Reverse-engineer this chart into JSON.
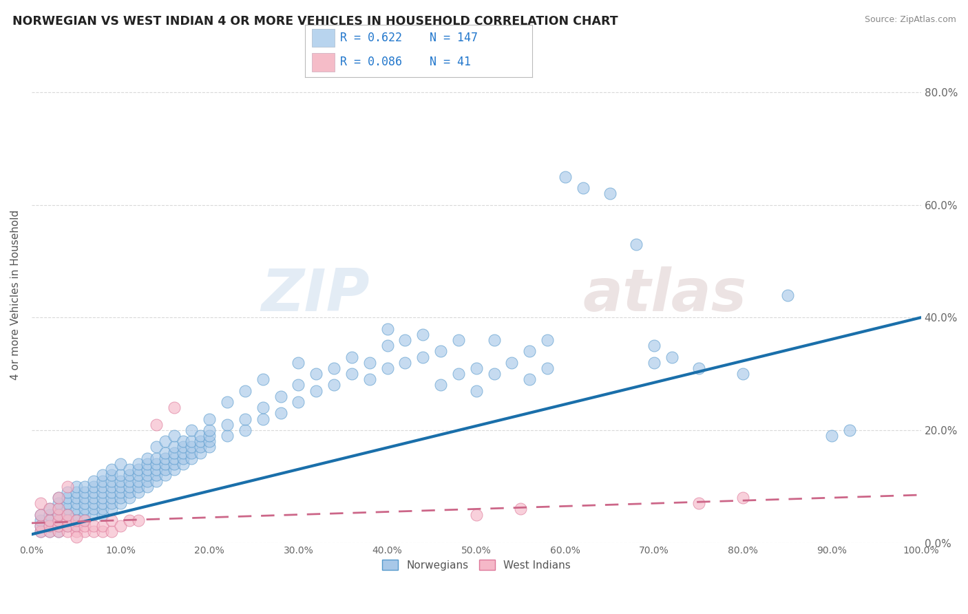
{
  "title": "NORWEGIAN VS WEST INDIAN 4 OR MORE VEHICLES IN HOUSEHOLD CORRELATION CHART",
  "source": "Source: ZipAtlas.com",
  "ylabel": "4 or more Vehicles in Household",
  "watermark_zip": "ZIP",
  "watermark_atlas": "atlas",
  "background_color": "#ffffff",
  "grid_color": "#d0d0d0",
  "norwegian_scatter_color": "#a8c8e8",
  "norwegian_edge_color": "#5599cc",
  "west_indian_scatter_color": "#f5b8c8",
  "west_indian_edge_color": "#dd7799",
  "norwegian_line_color": "#1a6faa",
  "west_indian_line_color": "#cc6688",
  "legend_nor_fill": "#b8d4ee",
  "legend_wi_fill": "#f5bcc8",
  "xlim": [
    0,
    100
  ],
  "ylim": [
    0,
    88
  ],
  "xaxis_pct_ticks": [
    0,
    10,
    20,
    30,
    40,
    50,
    60,
    70,
    80,
    90,
    100
  ],
  "yaxis_pct_ticks": [
    0,
    20,
    40,
    60,
    80
  ],
  "norwegian_R": 0.622,
  "norwegian_N": 147,
  "west_indian_R": 0.086,
  "west_indian_N": 41,
  "nor_line_x0": 0,
  "nor_line_y0": 1.5,
  "nor_line_x1": 100,
  "nor_line_y1": 40.0,
  "wi_line_x0": 0,
  "wi_line_y0": 3.5,
  "wi_line_x1": 100,
  "wi_line_y1": 8.5,
  "norwegian_points": [
    [
      1,
      2
    ],
    [
      1,
      3
    ],
    [
      1,
      4
    ],
    [
      1,
      5
    ],
    [
      2,
      2
    ],
    [
      2,
      3
    ],
    [
      2,
      4
    ],
    [
      2,
      5
    ],
    [
      2,
      6
    ],
    [
      3,
      2
    ],
    [
      3,
      3
    ],
    [
      3,
      4
    ],
    [
      3,
      5
    ],
    [
      3,
      6
    ],
    [
      3,
      7
    ],
    [
      3,
      8
    ],
    [
      4,
      3
    ],
    [
      4,
      4
    ],
    [
      4,
      5
    ],
    [
      4,
      6
    ],
    [
      4,
      7
    ],
    [
      4,
      8
    ],
    [
      4,
      9
    ],
    [
      5,
      3
    ],
    [
      5,
      4
    ],
    [
      5,
      5
    ],
    [
      5,
      6
    ],
    [
      5,
      7
    ],
    [
      5,
      8
    ],
    [
      5,
      9
    ],
    [
      5,
      10
    ],
    [
      6,
      4
    ],
    [
      6,
      5
    ],
    [
      6,
      6
    ],
    [
      6,
      7
    ],
    [
      6,
      8
    ],
    [
      6,
      9
    ],
    [
      6,
      10
    ],
    [
      7,
      5
    ],
    [
      7,
      6
    ],
    [
      7,
      7
    ],
    [
      7,
      8
    ],
    [
      7,
      9
    ],
    [
      7,
      10
    ],
    [
      7,
      11
    ],
    [
      8,
      5
    ],
    [
      8,
      6
    ],
    [
      8,
      7
    ],
    [
      8,
      8
    ],
    [
      8,
      9
    ],
    [
      8,
      10
    ],
    [
      8,
      11
    ],
    [
      8,
      12
    ],
    [
      9,
      6
    ],
    [
      9,
      7
    ],
    [
      9,
      8
    ],
    [
      9,
      9
    ],
    [
      9,
      10
    ],
    [
      9,
      11
    ],
    [
      9,
      12
    ],
    [
      9,
      13
    ],
    [
      10,
      7
    ],
    [
      10,
      8
    ],
    [
      10,
      9
    ],
    [
      10,
      10
    ],
    [
      10,
      11
    ],
    [
      10,
      12
    ],
    [
      10,
      14
    ],
    [
      11,
      8
    ],
    [
      11,
      9
    ],
    [
      11,
      10
    ],
    [
      11,
      11
    ],
    [
      11,
      12
    ],
    [
      11,
      13
    ],
    [
      12,
      9
    ],
    [
      12,
      10
    ],
    [
      12,
      11
    ],
    [
      12,
      12
    ],
    [
      12,
      13
    ],
    [
      12,
      14
    ],
    [
      13,
      10
    ],
    [
      13,
      11
    ],
    [
      13,
      12
    ],
    [
      13,
      13
    ],
    [
      13,
      14
    ],
    [
      13,
      15
    ],
    [
      14,
      11
    ],
    [
      14,
      12
    ],
    [
      14,
      13
    ],
    [
      14,
      14
    ],
    [
      14,
      15
    ],
    [
      14,
      17
    ],
    [
      15,
      12
    ],
    [
      15,
      13
    ],
    [
      15,
      14
    ],
    [
      15,
      15
    ],
    [
      15,
      16
    ],
    [
      15,
      18
    ],
    [
      16,
      13
    ],
    [
      16,
      14
    ],
    [
      16,
      15
    ],
    [
      16,
      16
    ],
    [
      16,
      17
    ],
    [
      16,
      19
    ],
    [
      17,
      14
    ],
    [
      17,
      15
    ],
    [
      17,
      16
    ],
    [
      17,
      17
    ],
    [
      17,
      18
    ],
    [
      18,
      15
    ],
    [
      18,
      16
    ],
    [
      18,
      17
    ],
    [
      18,
      18
    ],
    [
      18,
      20
    ],
    [
      19,
      16
    ],
    [
      19,
      17
    ],
    [
      19,
      18
    ],
    [
      19,
      19
    ],
    [
      20,
      17
    ],
    [
      20,
      18
    ],
    [
      20,
      19
    ],
    [
      20,
      20
    ],
    [
      20,
      22
    ],
    [
      22,
      19
    ],
    [
      22,
      21
    ],
    [
      22,
      25
    ],
    [
      24,
      20
    ],
    [
      24,
      22
    ],
    [
      24,
      27
    ],
    [
      26,
      22
    ],
    [
      26,
      24
    ],
    [
      26,
      29
    ],
    [
      28,
      23
    ],
    [
      28,
      26
    ],
    [
      30,
      25
    ],
    [
      30,
      28
    ],
    [
      30,
      32
    ],
    [
      32,
      27
    ],
    [
      32,
      30
    ],
    [
      34,
      28
    ],
    [
      34,
      31
    ],
    [
      36,
      30
    ],
    [
      36,
      33
    ],
    [
      38,
      29
    ],
    [
      38,
      32
    ],
    [
      40,
      31
    ],
    [
      40,
      35
    ],
    [
      40,
      38
    ],
    [
      42,
      32
    ],
    [
      42,
      36
    ],
    [
      44,
      33
    ],
    [
      44,
      37
    ],
    [
      46,
      28
    ],
    [
      46,
      34
    ],
    [
      48,
      30
    ],
    [
      48,
      36
    ],
    [
      50,
      27
    ],
    [
      50,
      31
    ],
    [
      52,
      30
    ],
    [
      52,
      36
    ],
    [
      54,
      32
    ],
    [
      56,
      29
    ],
    [
      56,
      34
    ],
    [
      58,
      31
    ],
    [
      58,
      36
    ],
    [
      60,
      65
    ],
    [
      62,
      63
    ],
    [
      65,
      62
    ],
    [
      68,
      53
    ],
    [
      70,
      35
    ],
    [
      70,
      32
    ],
    [
      72,
      33
    ],
    [
      75,
      31
    ],
    [
      80,
      30
    ],
    [
      85,
      44
    ],
    [
      90,
      19
    ],
    [
      92,
      20
    ]
  ],
  "west_indian_points": [
    [
      1,
      2
    ],
    [
      1,
      3
    ],
    [
      1,
      5
    ],
    [
      1,
      7
    ],
    [
      2,
      2
    ],
    [
      2,
      3
    ],
    [
      2,
      4
    ],
    [
      2,
      6
    ],
    [
      3,
      2
    ],
    [
      3,
      3
    ],
    [
      3,
      4
    ],
    [
      3,
      5
    ],
    [
      3,
      6
    ],
    [
      4,
      2
    ],
    [
      4,
      3
    ],
    [
      4,
      4
    ],
    [
      4,
      5
    ],
    [
      5,
      2
    ],
    [
      5,
      3
    ],
    [
      5,
      4
    ],
    [
      6,
      2
    ],
    [
      6,
      3
    ],
    [
      6,
      4
    ],
    [
      7,
      2
    ],
    [
      7,
      3
    ],
    [
      8,
      2
    ],
    [
      8,
      3
    ],
    [
      9,
      2
    ],
    [
      9,
      4
    ],
    [
      10,
      3
    ],
    [
      11,
      4
    ],
    [
      12,
      4
    ],
    [
      14,
      21
    ],
    [
      16,
      24
    ],
    [
      50,
      5
    ],
    [
      55,
      6
    ],
    [
      75,
      7
    ],
    [
      80,
      8
    ],
    [
      3,
      8
    ],
    [
      4,
      10
    ],
    [
      5,
      1
    ]
  ]
}
